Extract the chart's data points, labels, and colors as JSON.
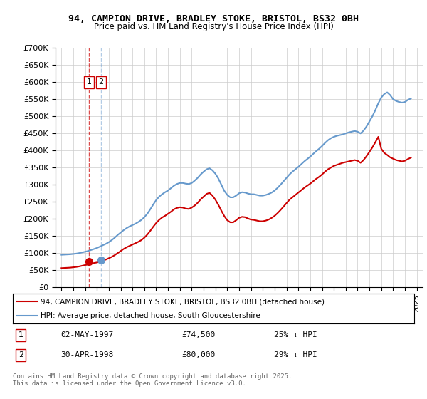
{
  "title1": "94, CAMPION DRIVE, BRADLEY STOKE, BRISTOL, BS32 0BH",
  "title2": "Price paid vs. HM Land Registry's House Price Index (HPI)",
  "legend1": "94, CAMPION DRIVE, BRADLEY STOKE, BRISTOL, BS32 0BH (detached house)",
  "legend2": "HPI: Average price, detached house, South Gloucestershire",
  "sale1_label": "1",
  "sale1_date": "02-MAY-1997",
  "sale1_price": "£74,500",
  "sale1_hpi": "25% ↓ HPI",
  "sale1_x": 1997.33,
  "sale1_y": 74500,
  "sale2_label": "2",
  "sale2_date": "30-APR-1998",
  "sale2_price": "£80,000",
  "sale2_hpi": "29% ↓ HPI",
  "sale2_x": 1998.33,
  "sale2_y": 80000,
  "footer": "Contains HM Land Registry data © Crown copyright and database right 2025.\nThis data is licensed under the Open Government Licence v3.0.",
  "red_color": "#cc0000",
  "blue_color": "#6699cc",
  "bg_color": "#ffffff",
  "grid_color": "#cccccc",
  "ylim": [
    0,
    700000
  ],
  "xlim_left": 1994.5,
  "xlim_right": 2025.5,
  "hpi_data": {
    "years": [
      1995.0,
      1995.25,
      1995.5,
      1995.75,
      1996.0,
      1996.25,
      1996.5,
      1996.75,
      1997.0,
      1997.25,
      1997.5,
      1997.75,
      1998.0,
      1998.25,
      1998.5,
      1998.75,
      1999.0,
      1999.25,
      1999.5,
      1999.75,
      2000.0,
      2000.25,
      2000.5,
      2000.75,
      2001.0,
      2001.25,
      2001.5,
      2001.75,
      2002.0,
      2002.25,
      2002.5,
      2002.75,
      2003.0,
      2003.25,
      2003.5,
      2003.75,
      2004.0,
      2004.25,
      2004.5,
      2004.75,
      2005.0,
      2005.25,
      2005.5,
      2005.75,
      2006.0,
      2006.25,
      2006.5,
      2006.75,
      2007.0,
      2007.25,
      2007.5,
      2007.75,
      2008.0,
      2008.25,
      2008.5,
      2008.75,
      2009.0,
      2009.25,
      2009.5,
      2009.75,
      2010.0,
      2010.25,
      2010.5,
      2010.75,
      2011.0,
      2011.25,
      2011.5,
      2011.75,
      2012.0,
      2012.25,
      2012.5,
      2012.75,
      2013.0,
      2013.25,
      2013.5,
      2013.75,
      2014.0,
      2014.25,
      2014.5,
      2014.75,
      2015.0,
      2015.25,
      2015.5,
      2015.75,
      2016.0,
      2016.25,
      2016.5,
      2016.75,
      2017.0,
      2017.25,
      2017.5,
      2017.75,
      2018.0,
      2018.25,
      2018.5,
      2018.75,
      2019.0,
      2019.25,
      2019.5,
      2019.75,
      2020.0,
      2020.25,
      2020.5,
      2020.75,
      2021.0,
      2021.25,
      2021.5,
      2021.75,
      2022.0,
      2022.25,
      2022.5,
      2022.75,
      2023.0,
      2023.25,
      2023.5,
      2023.75,
      2024.0,
      2024.25,
      2024.5
    ],
    "values": [
      95000,
      95500,
      96000,
      96500,
      97500,
      98500,
      100000,
      102000,
      104000,
      106000,
      109000,
      112000,
      115000,
      119000,
      123000,
      127000,
      132000,
      138000,
      145000,
      153000,
      160000,
      167000,
      173000,
      178000,
      182000,
      186000,
      191000,
      197000,
      205000,
      215000,
      228000,
      242000,
      255000,
      265000,
      272000,
      278000,
      283000,
      290000,
      297000,
      302000,
      305000,
      305000,
      303000,
      302000,
      305000,
      312000,
      320000,
      330000,
      338000,
      345000,
      348000,
      342000,
      332000,
      318000,
      300000,
      282000,
      270000,
      263000,
      263000,
      268000,
      275000,
      278000,
      277000,
      274000,
      272000,
      272000,
      270000,
      268000,
      268000,
      270000,
      273000,
      277000,
      283000,
      291000,
      300000,
      310000,
      320000,
      330000,
      338000,
      345000,
      352000,
      360000,
      368000,
      375000,
      382000,
      390000,
      398000,
      405000,
      413000,
      422000,
      430000,
      436000,
      440000,
      443000,
      445000,
      447000,
      450000,
      453000,
      455000,
      457000,
      455000,
      450000,
      458000,
      470000,
      485000,
      500000,
      518000,
      538000,
      555000,
      565000,
      570000,
      562000,
      550000,
      545000,
      542000,
      540000,
      542000,
      548000,
      552000
    ]
  },
  "red_data": {
    "years": [
      1995.0,
      1995.25,
      1995.5,
      1995.75,
      1996.0,
      1996.25,
      1996.5,
      1996.75,
      1997.0,
      1997.25,
      1997.5,
      1997.75,
      1998.0,
      1998.25,
      1998.5,
      1998.75,
      1999.0,
      1999.25,
      1999.5,
      1999.75,
      2000.0,
      2000.25,
      2000.5,
      2000.75,
      2001.0,
      2001.25,
      2001.5,
      2001.75,
      2002.0,
      2002.25,
      2002.5,
      2002.75,
      2003.0,
      2003.25,
      2003.5,
      2003.75,
      2004.0,
      2004.25,
      2004.5,
      2004.75,
      2005.0,
      2005.25,
      2005.5,
      2005.75,
      2006.0,
      2006.25,
      2006.5,
      2006.75,
      2007.0,
      2007.25,
      2007.5,
      2007.75,
      2008.0,
      2008.25,
      2008.5,
      2008.75,
      2009.0,
      2009.25,
      2009.5,
      2009.75,
      2010.0,
      2010.25,
      2010.5,
      2010.75,
      2011.0,
      2011.25,
      2011.5,
      2011.75,
      2012.0,
      2012.25,
      2012.5,
      2012.75,
      2013.0,
      2013.25,
      2013.5,
      2013.75,
      2014.0,
      2014.25,
      2014.5,
      2014.75,
      2015.0,
      2015.25,
      2015.5,
      2015.75,
      2016.0,
      2016.25,
      2016.5,
      2016.75,
      2017.0,
      2017.25,
      2017.5,
      2017.75,
      2018.0,
      2018.25,
      2018.5,
      2018.75,
      2019.0,
      2019.25,
      2019.5,
      2019.75,
      2020.0,
      2020.25,
      2020.5,
      2020.75,
      2021.0,
      2021.25,
      2021.5,
      2021.75,
      2022.0,
      2022.25,
      2022.5,
      2022.75,
      2023.0,
      2023.25,
      2023.5,
      2023.75,
      2024.0,
      2024.25,
      2024.5
    ],
    "values": [
      56000,
      56500,
      57000,
      57500,
      58500,
      59500,
      61000,
      63000,
      65000,
      66500,
      68500,
      71000,
      72500,
      75000,
      78000,
      81000,
      85000,
      89000,
      94000,
      100000,
      106000,
      112000,
      117000,
      121000,
      125000,
      129000,
      133000,
      138000,
      145000,
      154000,
      165000,
      177000,
      188000,
      197000,
      204000,
      209000,
      215000,
      221000,
      228000,
      232000,
      234000,
      233000,
      230000,
      229000,
      233000,
      239000,
      247000,
      257000,
      265000,
      273000,
      276000,
      268000,
      256000,
      241000,
      224000,
      208000,
      196000,
      190000,
      190000,
      196000,
      203000,
      206000,
      205000,
      201000,
      198000,
      197000,
      195000,
      193000,
      193000,
      195000,
      198000,
      203000,
      209000,
      217000,
      226000,
      236000,
      246000,
      256000,
      263000,
      270000,
      277000,
      284000,
      291000,
      297000,
      303000,
      310000,
      317000,
      323000,
      330000,
      338000,
      345000,
      350000,
      355000,
      358000,
      361000,
      364000,
      366000,
      368000,
      370000,
      372000,
      370000,
      364000,
      372000,
      383000,
      396000,
      409000,
      424000,
      440000,
      405000,
      393000,
      387000,
      380000,
      376000,
      372000,
      370000,
      368000,
      370000,
      375000,
      379000
    ]
  }
}
